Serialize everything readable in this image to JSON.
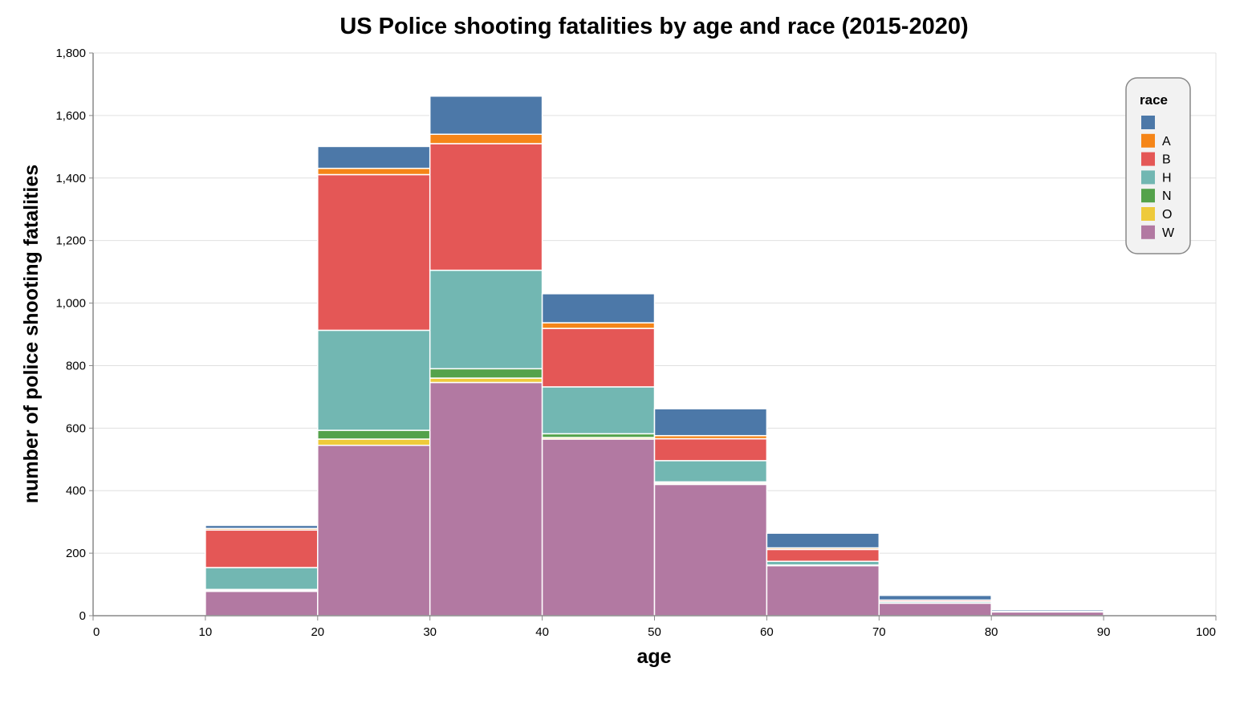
{
  "chart_data": {
    "type": "bar",
    "stacked": true,
    "title": "US Police shooting fatalities by age and race  (2015-2020)",
    "xlabel": "age",
    "ylabel": "number of police shooting fatalities",
    "xlim": [
      0,
      100
    ],
    "ylim": [
      0,
      1800
    ],
    "x_ticks": [
      "0",
      "10",
      "20",
      "30",
      "40",
      "50",
      "60",
      "70",
      "80",
      "90",
      "100"
    ],
    "y_ticks": [
      "0",
      "200",
      "400",
      "600",
      "800",
      "1,000",
      "1,200",
      "1,400",
      "1,600",
      "1,800"
    ],
    "y_tick_values": [
      0,
      200,
      400,
      600,
      800,
      1000,
      1200,
      1400,
      1600,
      1800
    ],
    "grid": true,
    "legend_position": "top-right",
    "legend_title": "race",
    "bins": [
      {
        "start": 0,
        "end": 10
      },
      {
        "start": 10,
        "end": 20
      },
      {
        "start": 20,
        "end": 30
      },
      {
        "start": 30,
        "end": 40
      },
      {
        "start": 40,
        "end": 50
      },
      {
        "start": 50,
        "end": 60
      },
      {
        "start": 60,
        "end": 70
      },
      {
        "start": 70,
        "end": 80
      },
      {
        "start": 80,
        "end": 90
      },
      {
        "start": 90,
        "end": 100
      }
    ],
    "series": [
      {
        "name": "W",
        "color": "#b279a2",
        "values": [
          3,
          78,
          545,
          746,
          565,
          420,
          160,
          40,
          12,
          0
        ]
      },
      {
        "name": "O",
        "color": "#eeca3b",
        "values": [
          0,
          3,
          20,
          14,
          5,
          4,
          0,
          0,
          0,
          0
        ]
      },
      {
        "name": "N",
        "color": "#54a24b",
        "values": [
          0,
          3,
          28,
          30,
          12,
          4,
          2,
          0,
          0,
          0
        ]
      },
      {
        "name": "H",
        "color": "#72b7b2",
        "values": [
          0,
          70,
          320,
          315,
          150,
          68,
          12,
          5,
          2,
          0
        ]
      },
      {
        "name": "B",
        "color": "#e45756",
        "values": [
          0,
          120,
          498,
          405,
          187,
          70,
          38,
          5,
          0,
          0
        ]
      },
      {
        "name": "A",
        "color": "#f58518",
        "values": [
          0,
          5,
          20,
          30,
          18,
          10,
          5,
          0,
          0,
          0
        ]
      },
      {
        "name": "",
        "color": "#4c78a8",
        "values": [
          0,
          10,
          70,
          122,
          93,
          86,
          47,
          15,
          5,
          0
        ]
      }
    ],
    "legend_order": [
      "",
      "A",
      "B",
      "H",
      "N",
      "O",
      "W"
    ]
  }
}
